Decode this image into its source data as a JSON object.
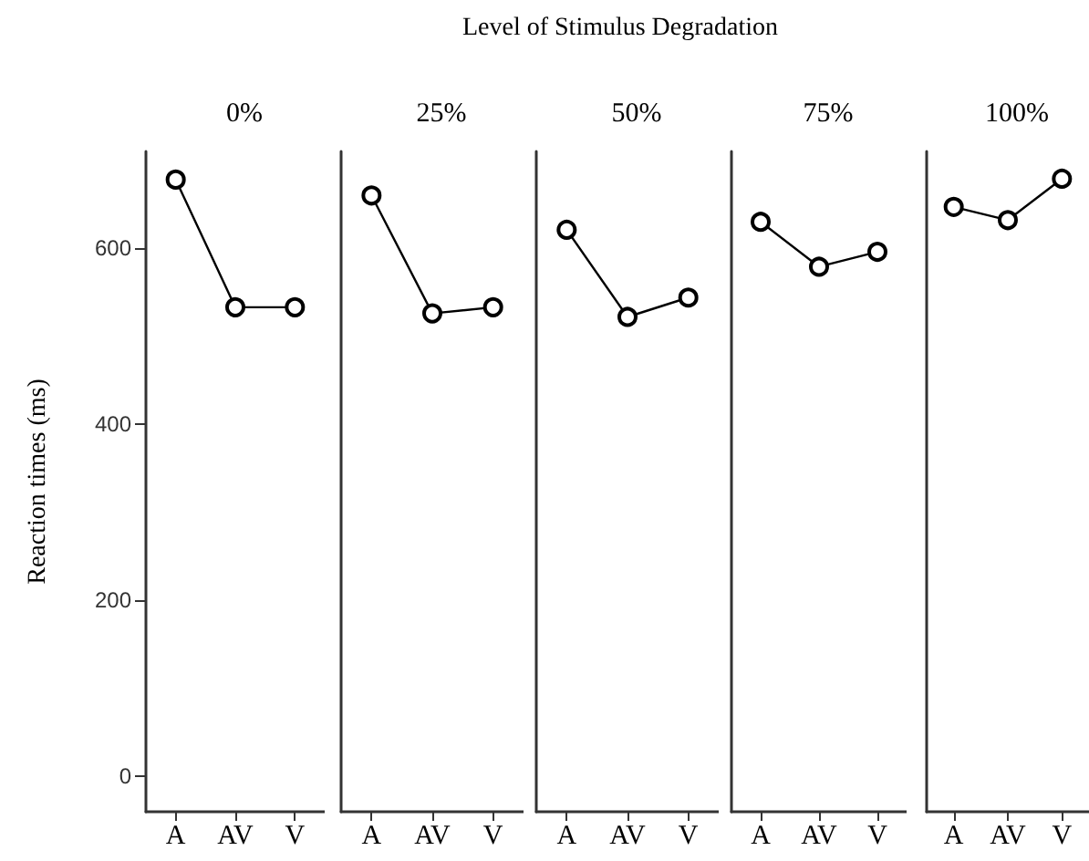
{
  "chart_data": [
    {
      "type": "line",
      "title": "0%",
      "ylabel": "Reaction times (ms)",
      "annotations": [
        "Level of Stimulus Degradation"
      ],
      "categories": [
        "A",
        "AV",
        "V"
      ],
      "values": [
        678,
        533,
        533
      ],
      "color": "#000000",
      "ylim": [
        -40,
        710
      ],
      "yticks": [
        0,
        200,
        400,
        600
      ],
      "marker": "circle"
    },
    {
      "type": "line",
      "title": "25%",
      "categories": [
        "A",
        "AV",
        "V"
      ],
      "values": [
        660,
        526,
        533
      ],
      "color": "#000000",
      "ylim": [
        -40,
        710
      ],
      "yticks": [
        0,
        200,
        400,
        600
      ],
      "tick_labels": "x",
      "marker": "circle"
    },
    {
      "type": "line",
      "title": "50%",
      "categories": [
        "A",
        "AV",
        "V"
      ],
      "values": [
        621,
        522,
        544
      ],
      "color": "#000000",
      "ylim": [
        -40,
        710
      ],
      "yticks": [
        0,
        200,
        400,
        600
      ],
      "tick_labels": "x",
      "marker": "circle"
    },
    {
      "type": "line",
      "title": "75%",
      "categories": [
        "A",
        "AV",
        "V"
      ],
      "values": [
        630,
        579,
        596
      ],
      "color": "#000000",
      "ylim": [
        -40,
        710
      ],
      "yticks": [
        0,
        200,
        400,
        600
      ],
      "tick_labels": "x",
      "marker": "circle"
    },
    {
      "type": "line",
      "title": "100%",
      "categories": [
        "A",
        "AV",
        "V"
      ],
      "values": [
        647,
        632,
        679
      ],
      "color": "#000000",
      "ylim": [
        -40,
        710
      ],
      "yticks": [
        0,
        200,
        400,
        600
      ],
      "tick_labels": "x",
      "marker": "circle"
    }
  ]
}
